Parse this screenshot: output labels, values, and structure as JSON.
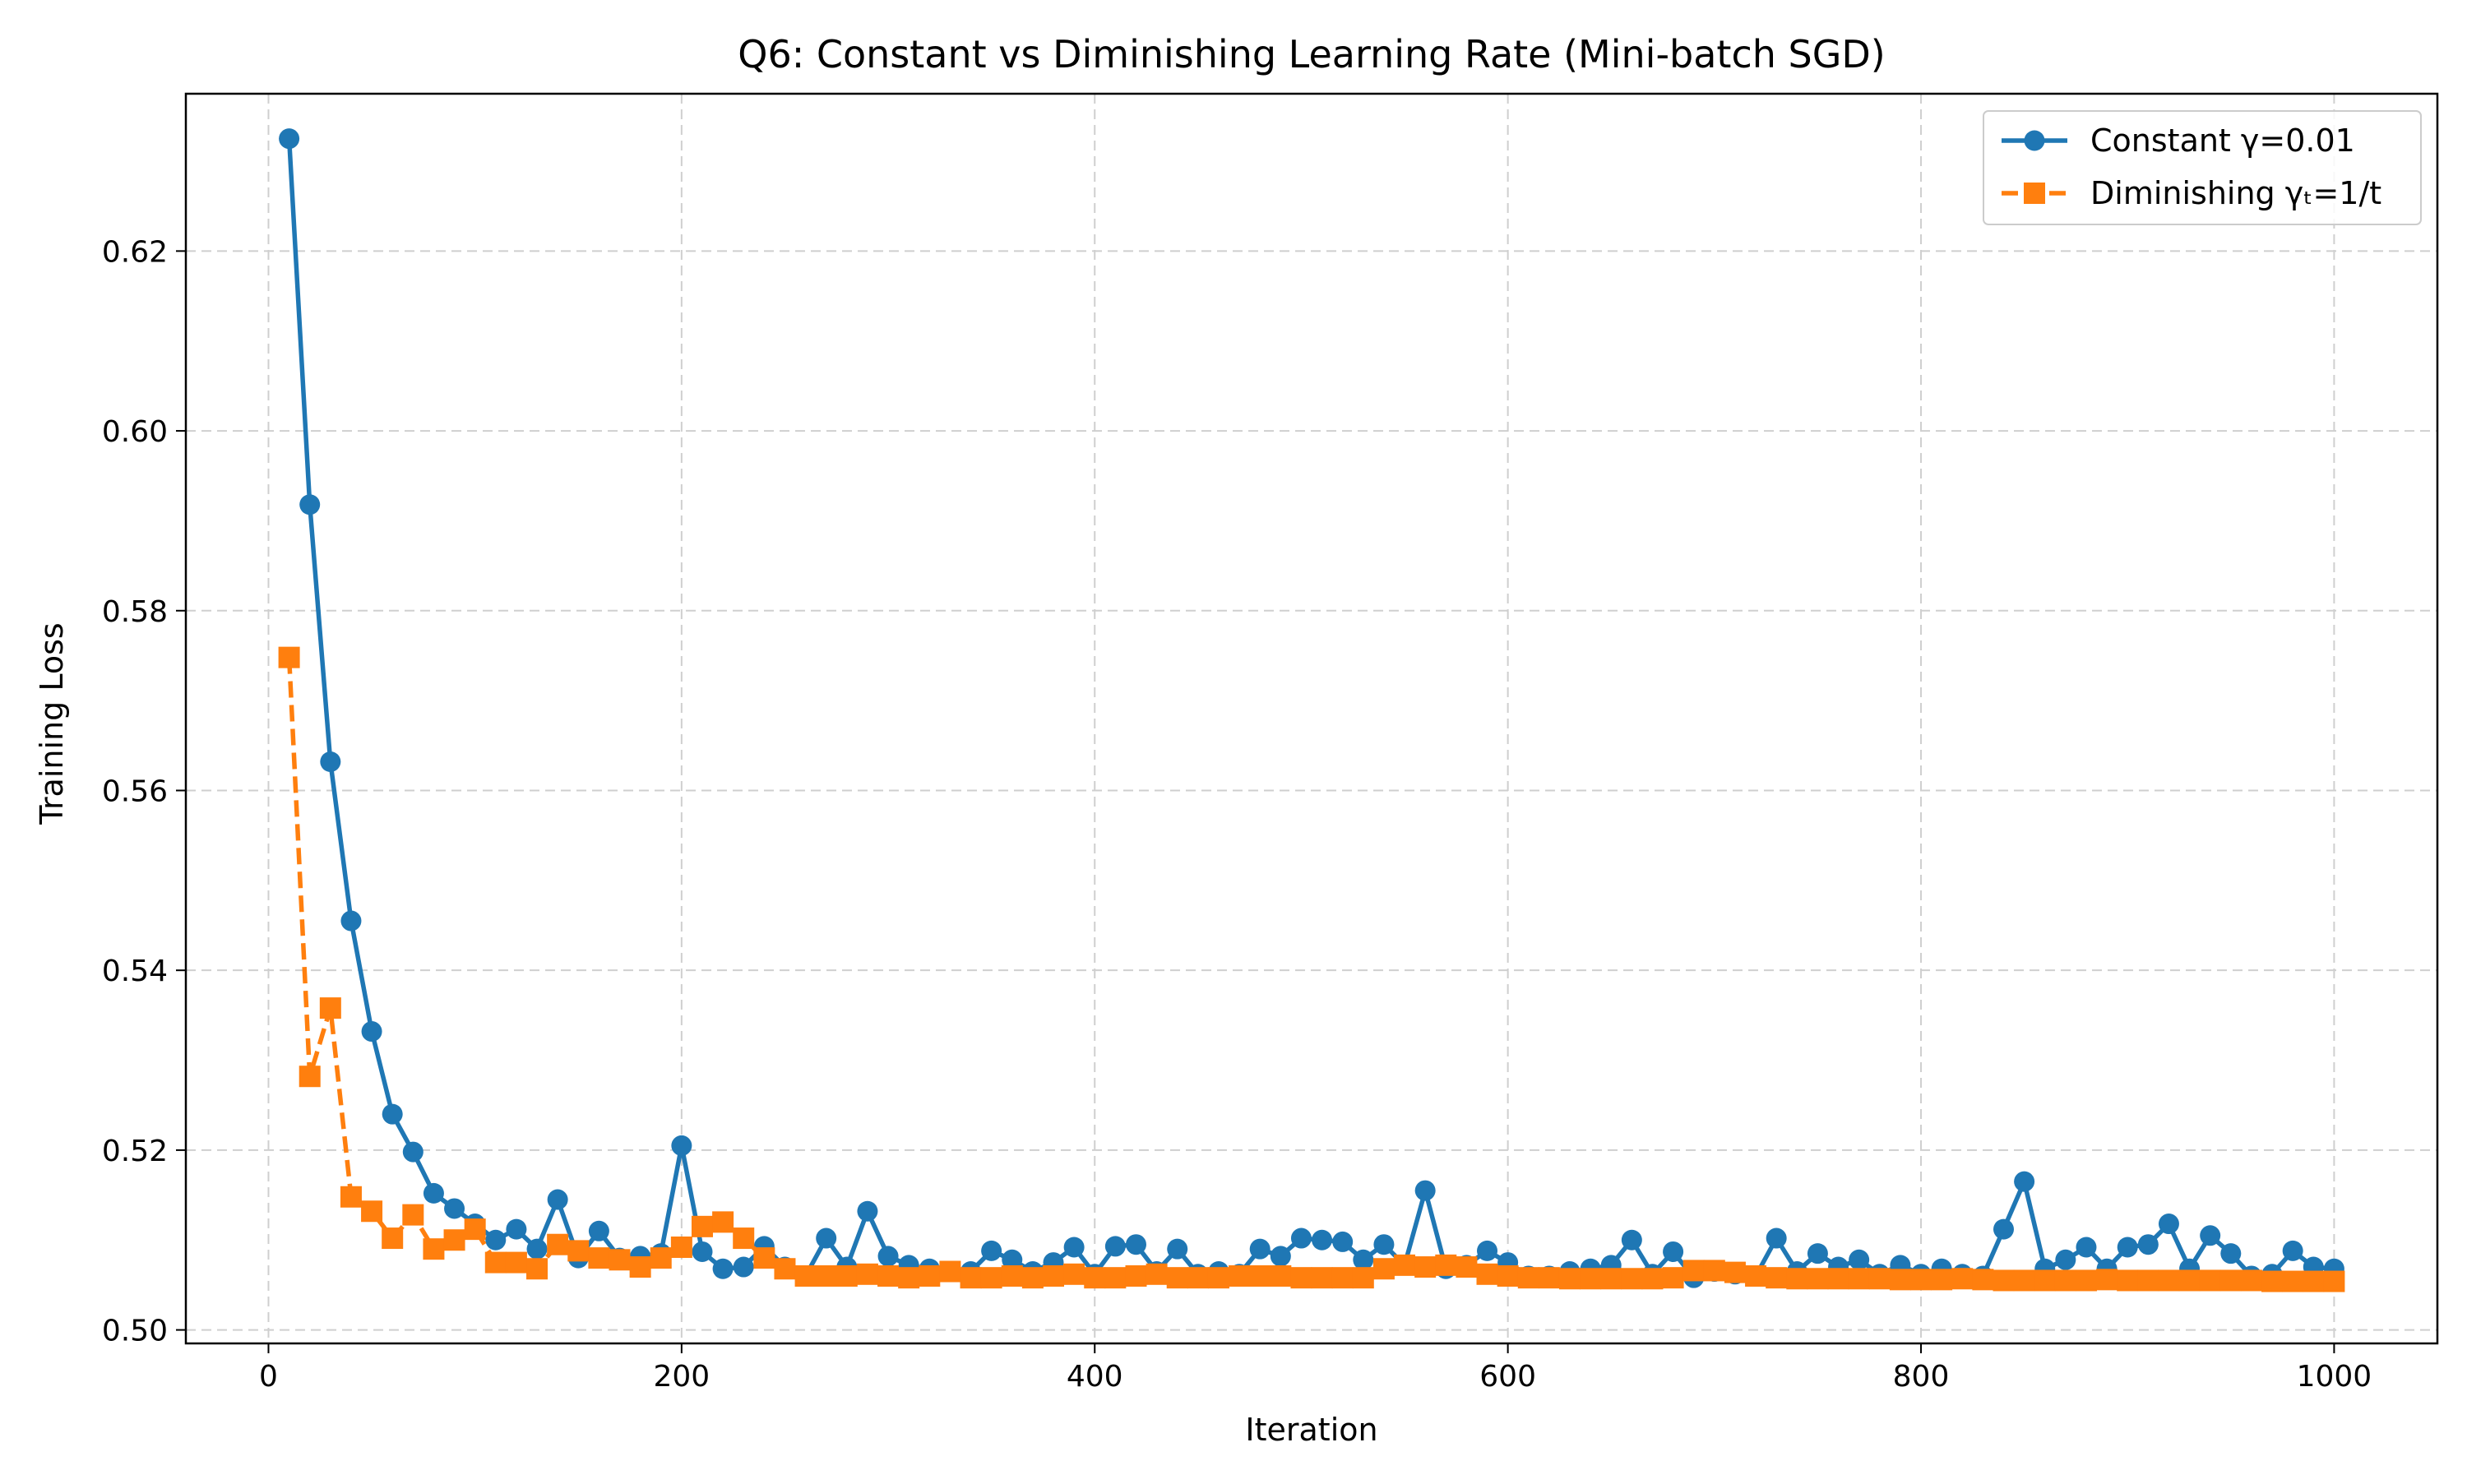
{
  "chart_data": {
    "type": "line",
    "title": "Q6: Constant vs Diminishing Learning Rate (Mini-batch SGD)",
    "xlabel": "Iteration",
    "ylabel": "Training Loss",
    "xlim": [
      -40,
      1050
    ],
    "ylim": [
      0.4985,
      0.6375
    ],
    "xticks": [
      0,
      200,
      400,
      600,
      800,
      1000
    ],
    "xtick_labels": [
      "0",
      "200",
      "400",
      "600",
      "800",
      "1000"
    ],
    "yticks": [
      0.5,
      0.52,
      0.54,
      0.56,
      0.58,
      0.6,
      0.62
    ],
    "ytick_labels": [
      "0.50",
      "0.52",
      "0.54",
      "0.56",
      "0.58",
      "0.60",
      "0.62"
    ],
    "grid": true,
    "legend_position": "top-right",
    "x": [
      10,
      20,
      30,
      40,
      50,
      60,
      70,
      80,
      90,
      100,
      110,
      120,
      130,
      140,
      150,
      160,
      170,
      180,
      190,
      200,
      210,
      220,
      230,
      240,
      250,
      260,
      270,
      280,
      290,
      300,
      310,
      320,
      330,
      340,
      350,
      360,
      370,
      380,
      390,
      400,
      410,
      420,
      430,
      440,
      450,
      460,
      470,
      480,
      490,
      500,
      510,
      520,
      530,
      540,
      550,
      560,
      570,
      580,
      590,
      600,
      610,
      620,
      630,
      640,
      650,
      660,
      670,
      680,
      690,
      700,
      710,
      720,
      730,
      740,
      750,
      760,
      770,
      780,
      790,
      800,
      810,
      820,
      830,
      840,
      850,
      860,
      870,
      880,
      890,
      900,
      910,
      920,
      930,
      940,
      950,
      960,
      970,
      980,
      990,
      1000
    ],
    "series": [
      {
        "name": "Constant γ=0.01",
        "color": "#1f77b4",
        "marker": "circle",
        "linestyle": "solid",
        "values": [
          0.6325,
          0.5918,
          0.5632,
          0.5455,
          0.5332,
          0.524,
          0.5198,
          0.5152,
          0.5135,
          0.5118,
          0.51,
          0.5112,
          0.509,
          0.5145,
          0.508,
          0.511,
          0.508,
          0.5082,
          0.5085,
          0.5205,
          0.5087,
          0.5068,
          0.507,
          0.5093,
          0.507,
          0.506,
          0.5102,
          0.507,
          0.5132,
          0.5082,
          0.5072,
          0.5068,
          0.5065,
          0.5065,
          0.5088,
          0.5078,
          0.5065,
          0.5075,
          0.5092,
          0.5062,
          0.5093,
          0.5095,
          0.5065,
          0.509,
          0.5062,
          0.5065,
          0.5062,
          0.509,
          0.5082,
          0.5102,
          0.51,
          0.5098,
          0.5078,
          0.5095,
          0.5072,
          0.5155,
          0.5068,
          0.5072,
          0.5088,
          0.5075,
          0.506,
          0.506,
          0.5065,
          0.5068,
          0.5072,
          0.51,
          0.5062,
          0.5087,
          0.5058,
          0.5065,
          0.5062,
          0.506,
          0.5102,
          0.5065,
          0.5085,
          0.507,
          0.5078,
          0.5062,
          0.5072,
          0.5062,
          0.5068,
          0.5062,
          0.506,
          0.5112,
          0.5165,
          0.5068,
          0.5078,
          0.5092,
          0.5068,
          0.5092,
          0.5095,
          0.5118,
          0.5068,
          0.5105,
          0.5085,
          0.506,
          0.5062,
          0.5088,
          0.507,
          0.5068
        ]
      },
      {
        "name": "Diminishing γₜ=1/t",
        "color": "#ff7f0e",
        "marker": "square",
        "linestyle": "dashed",
        "values": [
          0.5748,
          0.5282,
          0.5358,
          0.5148,
          0.5132,
          0.5102,
          0.5128,
          0.509,
          0.51,
          0.5112,
          0.5075,
          0.5075,
          0.5068,
          0.5095,
          0.5088,
          0.508,
          0.5078,
          0.507,
          0.508,
          0.5092,
          0.5115,
          0.512,
          0.5102,
          0.508,
          0.5068,
          0.506,
          0.506,
          0.506,
          0.5062,
          0.506,
          0.5058,
          0.506,
          0.5065,
          0.5058,
          0.5058,
          0.506,
          0.5058,
          0.506,
          0.5062,
          0.5058,
          0.5058,
          0.506,
          0.5062,
          0.5058,
          0.5058,
          0.5058,
          0.506,
          0.506,
          0.506,
          0.5058,
          0.5058,
          0.5058,
          0.5058,
          0.5068,
          0.5072,
          0.507,
          0.5072,
          0.507,
          0.5062,
          0.506,
          0.5058,
          0.5058,
          0.5057,
          0.5057,
          0.5057,
          0.5057,
          0.5057,
          0.5058,
          0.5066,
          0.5066,
          0.5064,
          0.506,
          0.5058,
          0.5057,
          0.5057,
          0.5057,
          0.5057,
          0.5057,
          0.5056,
          0.5056,
          0.5056,
          0.5057,
          0.5056,
          0.5055,
          0.5055,
          0.5055,
          0.5055,
          0.5055,
          0.5056,
          0.5055,
          0.5055,
          0.5055,
          0.5055,
          0.5055,
          0.5055,
          0.5055,
          0.5054,
          0.5054,
          0.5054,
          0.5054
        ]
      }
    ]
  }
}
